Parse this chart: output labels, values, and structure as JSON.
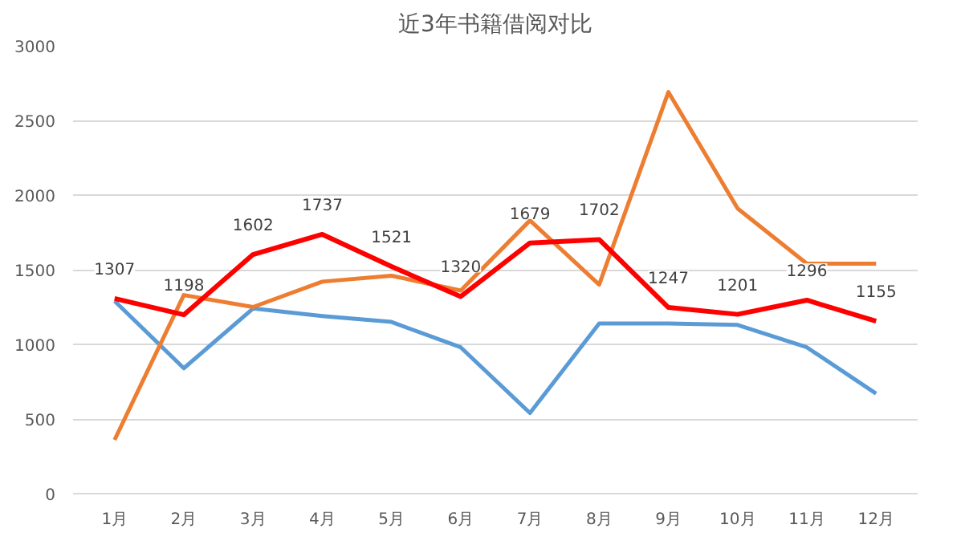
{
  "chart_data": {
    "type": "line",
    "title": "近3年书籍借阅对比",
    "categories": [
      "1月",
      "2月",
      "3月",
      "4月",
      "5月",
      "6月",
      "7月",
      "8月",
      "9月",
      "10月",
      "11月",
      "12月"
    ],
    "series": [
      {
        "color": "#5b9bd5",
        "values": [
          1290,
          840,
          1240,
          1190,
          1150,
          980,
          540,
          1140,
          1140,
          1130,
          980,
          670
        ]
      },
      {
        "color": "#ed7d31",
        "values": [
          360,
          1330,
          1250,
          1420,
          1460,
          1360,
          1830,
          1400,
          2690,
          1910,
          1540,
          1540
        ]
      },
      {
        "color": "#ff0000",
        "values": [
          1307,
          1198,
          1602,
          1737,
          1521,
          1320,
          1679,
          1702,
          1247,
          1201,
          1296,
          1155
        ],
        "value_labels": [
          "1307",
          "1198",
          "1602",
          "1737",
          "1521",
          "1320",
          "1679",
          "1702",
          "1247",
          "1201",
          "1296",
          "1155"
        ]
      }
    ],
    "ylim": [
      0,
      3000
    ],
    "yticks": [
      0,
      500,
      1000,
      1500,
      2000,
      2500,
      3000
    ],
    "grid": "y",
    "marker": "none",
    "line_style": "solid"
  }
}
